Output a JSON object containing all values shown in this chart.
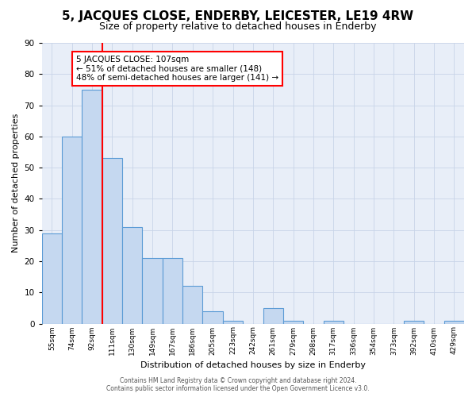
{
  "title": "5, JACQUES CLOSE, ENDERBY, LEICESTER, LE19 4RW",
  "subtitle": "Size of property relative to detached houses in Enderby",
  "xlabel": "Distribution of detached houses by size in Enderby",
  "ylabel": "Number of detached properties",
  "categories": [
    "55sqm",
    "74sqm",
    "92sqm",
    "111sqm",
    "130sqm",
    "149sqm",
    "167sqm",
    "186sqm",
    "205sqm",
    "223sqm",
    "242sqm",
    "261sqm",
    "279sqm",
    "298sqm",
    "317sqm",
    "336sqm",
    "354sqm",
    "373sqm",
    "392sqm",
    "410sqm",
    "429sqm"
  ],
  "values": [
    29,
    60,
    75,
    53,
    31,
    21,
    21,
    12,
    4,
    1,
    0,
    5,
    1,
    0,
    1,
    0,
    0,
    0,
    1,
    0,
    1
  ],
  "bar_color": "#c5d8f0",
  "bar_edge_color": "#5b9bd5",
  "annotation_text": "5 JACQUES CLOSE: 107sqm\n← 51% of detached houses are smaller (148)\n48% of semi-detached houses are larger (141) →",
  "annotation_box_color": "white",
  "annotation_box_edge_color": "red",
  "footer_line1": "Contains HM Land Registry data © Crown copyright and database right 2024.",
  "footer_line2": "Contains public sector information licensed under the Open Government Licence v3.0.",
  "ylim": [
    0,
    90
  ],
  "grid_color": "#c8d4e8",
  "background_color": "#e8eef8",
  "title_fontsize": 11,
  "subtitle_fontsize": 9
}
